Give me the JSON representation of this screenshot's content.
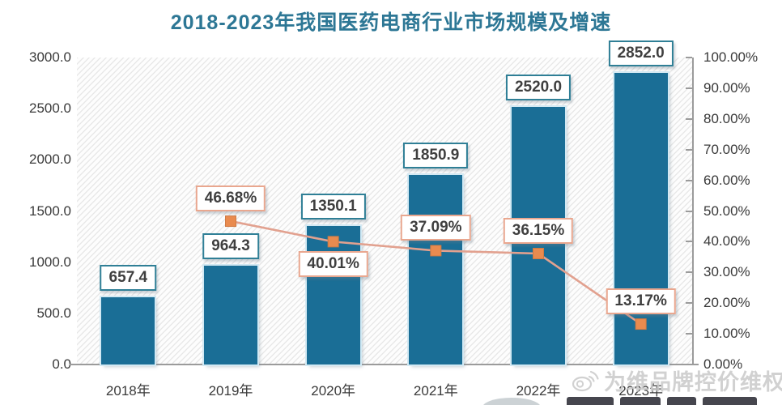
{
  "title": "2018-2023年我国医药电商行业市场规模及增速",
  "watermark": {
    "icon": "weibo-icon",
    "text": "为维品牌控价维权"
  },
  "colors": {
    "title": "#2d7795",
    "bar": "#1a6e96",
    "bar_label_border": "#2f7f96",
    "line": "#e2a18f",
    "marker": "#e98b4f",
    "pct_label_border": "#e9a78f",
    "axis": "#9b9b9b",
    "axis_text": "#3a3a3a"
  },
  "chart_data": {
    "type": "bar+line",
    "title": "2018-2023年我国医药电商行业市场规模及增速",
    "categories": [
      "2018年",
      "2019年",
      "2020年",
      "2021年",
      "2022年",
      "2023年"
    ],
    "bar_series": {
      "role": "market-size-bars",
      "values": [
        657.4,
        964.3,
        1350.1,
        1850.9,
        2520.0,
        2852.0
      ],
      "labels": [
        "657.4",
        "964.3",
        "1350.1",
        "1850.9",
        "2520.0",
        "2852.0"
      ],
      "color": "#1a6e96",
      "axis": "left"
    },
    "line_series": {
      "role": "growth-rate-line",
      "values": [
        null,
        46.68,
        40.01,
        37.09,
        36.15,
        13.17
      ],
      "labels": [
        null,
        "46.68%",
        "40.01%",
        "37.09%",
        "36.15%",
        "13.17%"
      ],
      "label_position": [
        null,
        "above",
        "below",
        "above",
        "above",
        "above"
      ],
      "color": "#e2a18f",
      "marker_color": "#e98b4f",
      "axis": "right"
    },
    "left_axis": {
      "min": 0,
      "max": 3000,
      "step": 500,
      "tick_labels": [
        "3000.0",
        "2500.0",
        "2000.0",
        "1500.0",
        "1000.0",
        "500.0",
        "0.0"
      ]
    },
    "right_axis": {
      "min": 0,
      "max": 100,
      "step": 10,
      "tick_labels": [
        "100.00%",
        "90.00%",
        "80.00%",
        "70.00%",
        "60.00%",
        "50.00%",
        "40.00%",
        "30.00%",
        "20.00%",
        "10.00%",
        "0.00%"
      ]
    },
    "grid": false,
    "legend": false
  }
}
